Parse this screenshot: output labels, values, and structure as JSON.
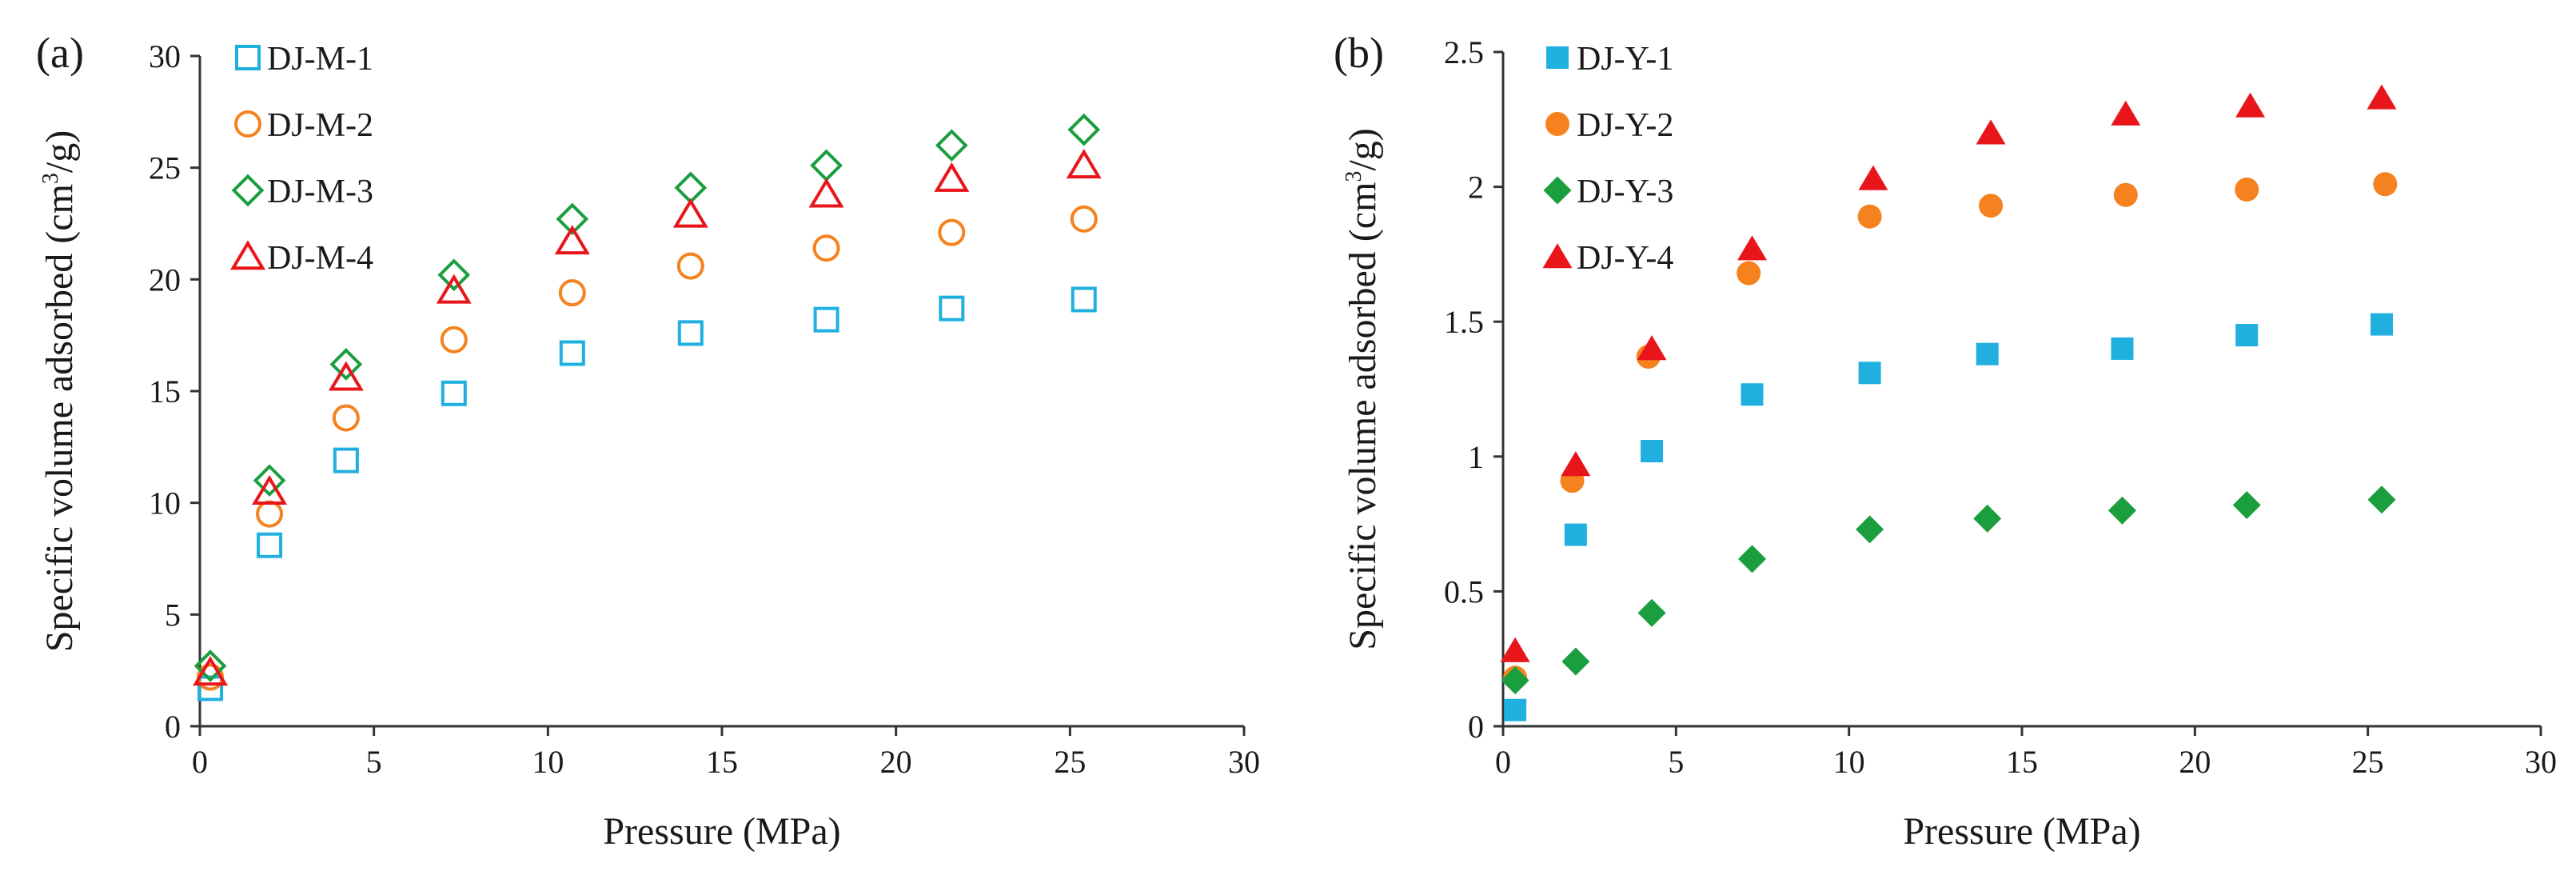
{
  "chart_data": [
    {
      "type": "scatter",
      "panel_label": "(a)",
      "xlabel": "Pressure (MPa)",
      "ylabel": {
        "prefix": "Specific volume adsorbed (cm",
        "sup": "3",
        "suffix": "/g)"
      },
      "xlim": [
        0,
        30
      ],
      "ylim": [
        0,
        30
      ],
      "xticks": [
        "0",
        "5",
        "10",
        "15",
        "20",
        "25",
        "30"
      ],
      "yticks": [
        "0",
        "5",
        "10",
        "15",
        "20",
        "25",
        "30"
      ],
      "legend_position": "top-left",
      "series": [
        {
          "name": "DJ-M-1",
          "marker": "square",
          "filled": false,
          "color": "#1fb0e0",
          "x": [
            0.3,
            2.0,
            4.2,
            7.3,
            10.7,
            14.1,
            18.0,
            21.6,
            25.4
          ],
          "y": [
            1.7,
            8.1,
            11.9,
            14.9,
            16.7,
            17.6,
            18.2,
            18.7,
            19.1
          ]
        },
        {
          "name": "DJ-M-2",
          "marker": "circle",
          "filled": false,
          "color": "#f5821f",
          "x": [
            0.3,
            2.0,
            4.2,
            7.3,
            10.7,
            14.1,
            18.0,
            21.6,
            25.4
          ],
          "y": [
            2.2,
            9.5,
            13.8,
            17.3,
            19.4,
            20.6,
            21.4,
            22.1,
            22.7
          ]
        },
        {
          "name": "DJ-M-3",
          "marker": "diamond",
          "filled": false,
          "color": "#1a9e3e",
          "x": [
            0.3,
            2.0,
            4.2,
            7.3,
            10.7,
            14.1,
            18.0,
            21.6,
            25.4
          ],
          "y": [
            2.7,
            11.0,
            16.2,
            20.2,
            22.7,
            24.1,
            25.1,
            26.0,
            26.7
          ]
        },
        {
          "name": "DJ-M-4",
          "marker": "triangle",
          "filled": false,
          "color": "#e8151b",
          "x": [
            0.3,
            2.0,
            4.2,
            7.3,
            10.7,
            14.1,
            18.0,
            21.6,
            25.4
          ],
          "y": [
            2.4,
            10.5,
            15.6,
            19.5,
            21.7,
            22.9,
            23.8,
            24.5,
            25.1
          ]
        }
      ]
    },
    {
      "type": "scatter",
      "panel_label": "(b)",
      "xlabel": "Pressure (MPa)",
      "ylabel": {
        "prefix": "Specific volume adsorbed (cm",
        "sup": "3",
        "suffix": "/g)"
      },
      "xlim": [
        0,
        30
      ],
      "ylim": [
        0,
        2.5
      ],
      "xticks": [
        "0",
        "5",
        "10",
        "15",
        "20",
        "25",
        "30"
      ],
      "yticks": [
        "0",
        "0.5",
        "1",
        "1.5",
        "2",
        "2.5"
      ],
      "legend_position": "top-left",
      "series": [
        {
          "name": "DJ-Y-1",
          "marker": "square",
          "filled": true,
          "color": "#1fb0e0",
          "x": [
            0.35,
            2.1,
            4.3,
            7.2,
            10.6,
            14.0,
            17.9,
            21.5,
            25.4
          ],
          "y": [
            0.06,
            0.71,
            1.02,
            1.23,
            1.31,
            1.38,
            1.4,
            1.45,
            1.49
          ]
        },
        {
          "name": "DJ-Y-2",
          "marker": "circle",
          "filled": true,
          "color": "#f5821f",
          "x": [
            0.35,
            2.0,
            4.2,
            7.1,
            10.6,
            14.1,
            18.0,
            21.5,
            25.5
          ],
          "y": [
            0.18,
            0.91,
            1.37,
            1.68,
            1.89,
            1.93,
            1.97,
            1.99,
            2.01
          ]
        },
        {
          "name": "DJ-Y-3",
          "marker": "diamond",
          "filled": true,
          "color": "#1a9e3e",
          "x": [
            0.35,
            2.1,
            4.3,
            7.2,
            10.6,
            14.0,
            17.9,
            21.5,
            25.4
          ],
          "y": [
            0.17,
            0.24,
            0.42,
            0.62,
            0.73,
            0.77,
            0.8,
            0.82,
            0.84
          ]
        },
        {
          "name": "DJ-Y-4",
          "marker": "triangle",
          "filled": true,
          "color": "#e8151b",
          "x": [
            0.35,
            2.1,
            4.3,
            7.2,
            10.7,
            14.1,
            18.0,
            21.6,
            25.4
          ],
          "y": [
            0.28,
            0.97,
            1.4,
            1.77,
            2.03,
            2.2,
            2.27,
            2.3,
            2.33
          ]
        }
      ]
    }
  ]
}
